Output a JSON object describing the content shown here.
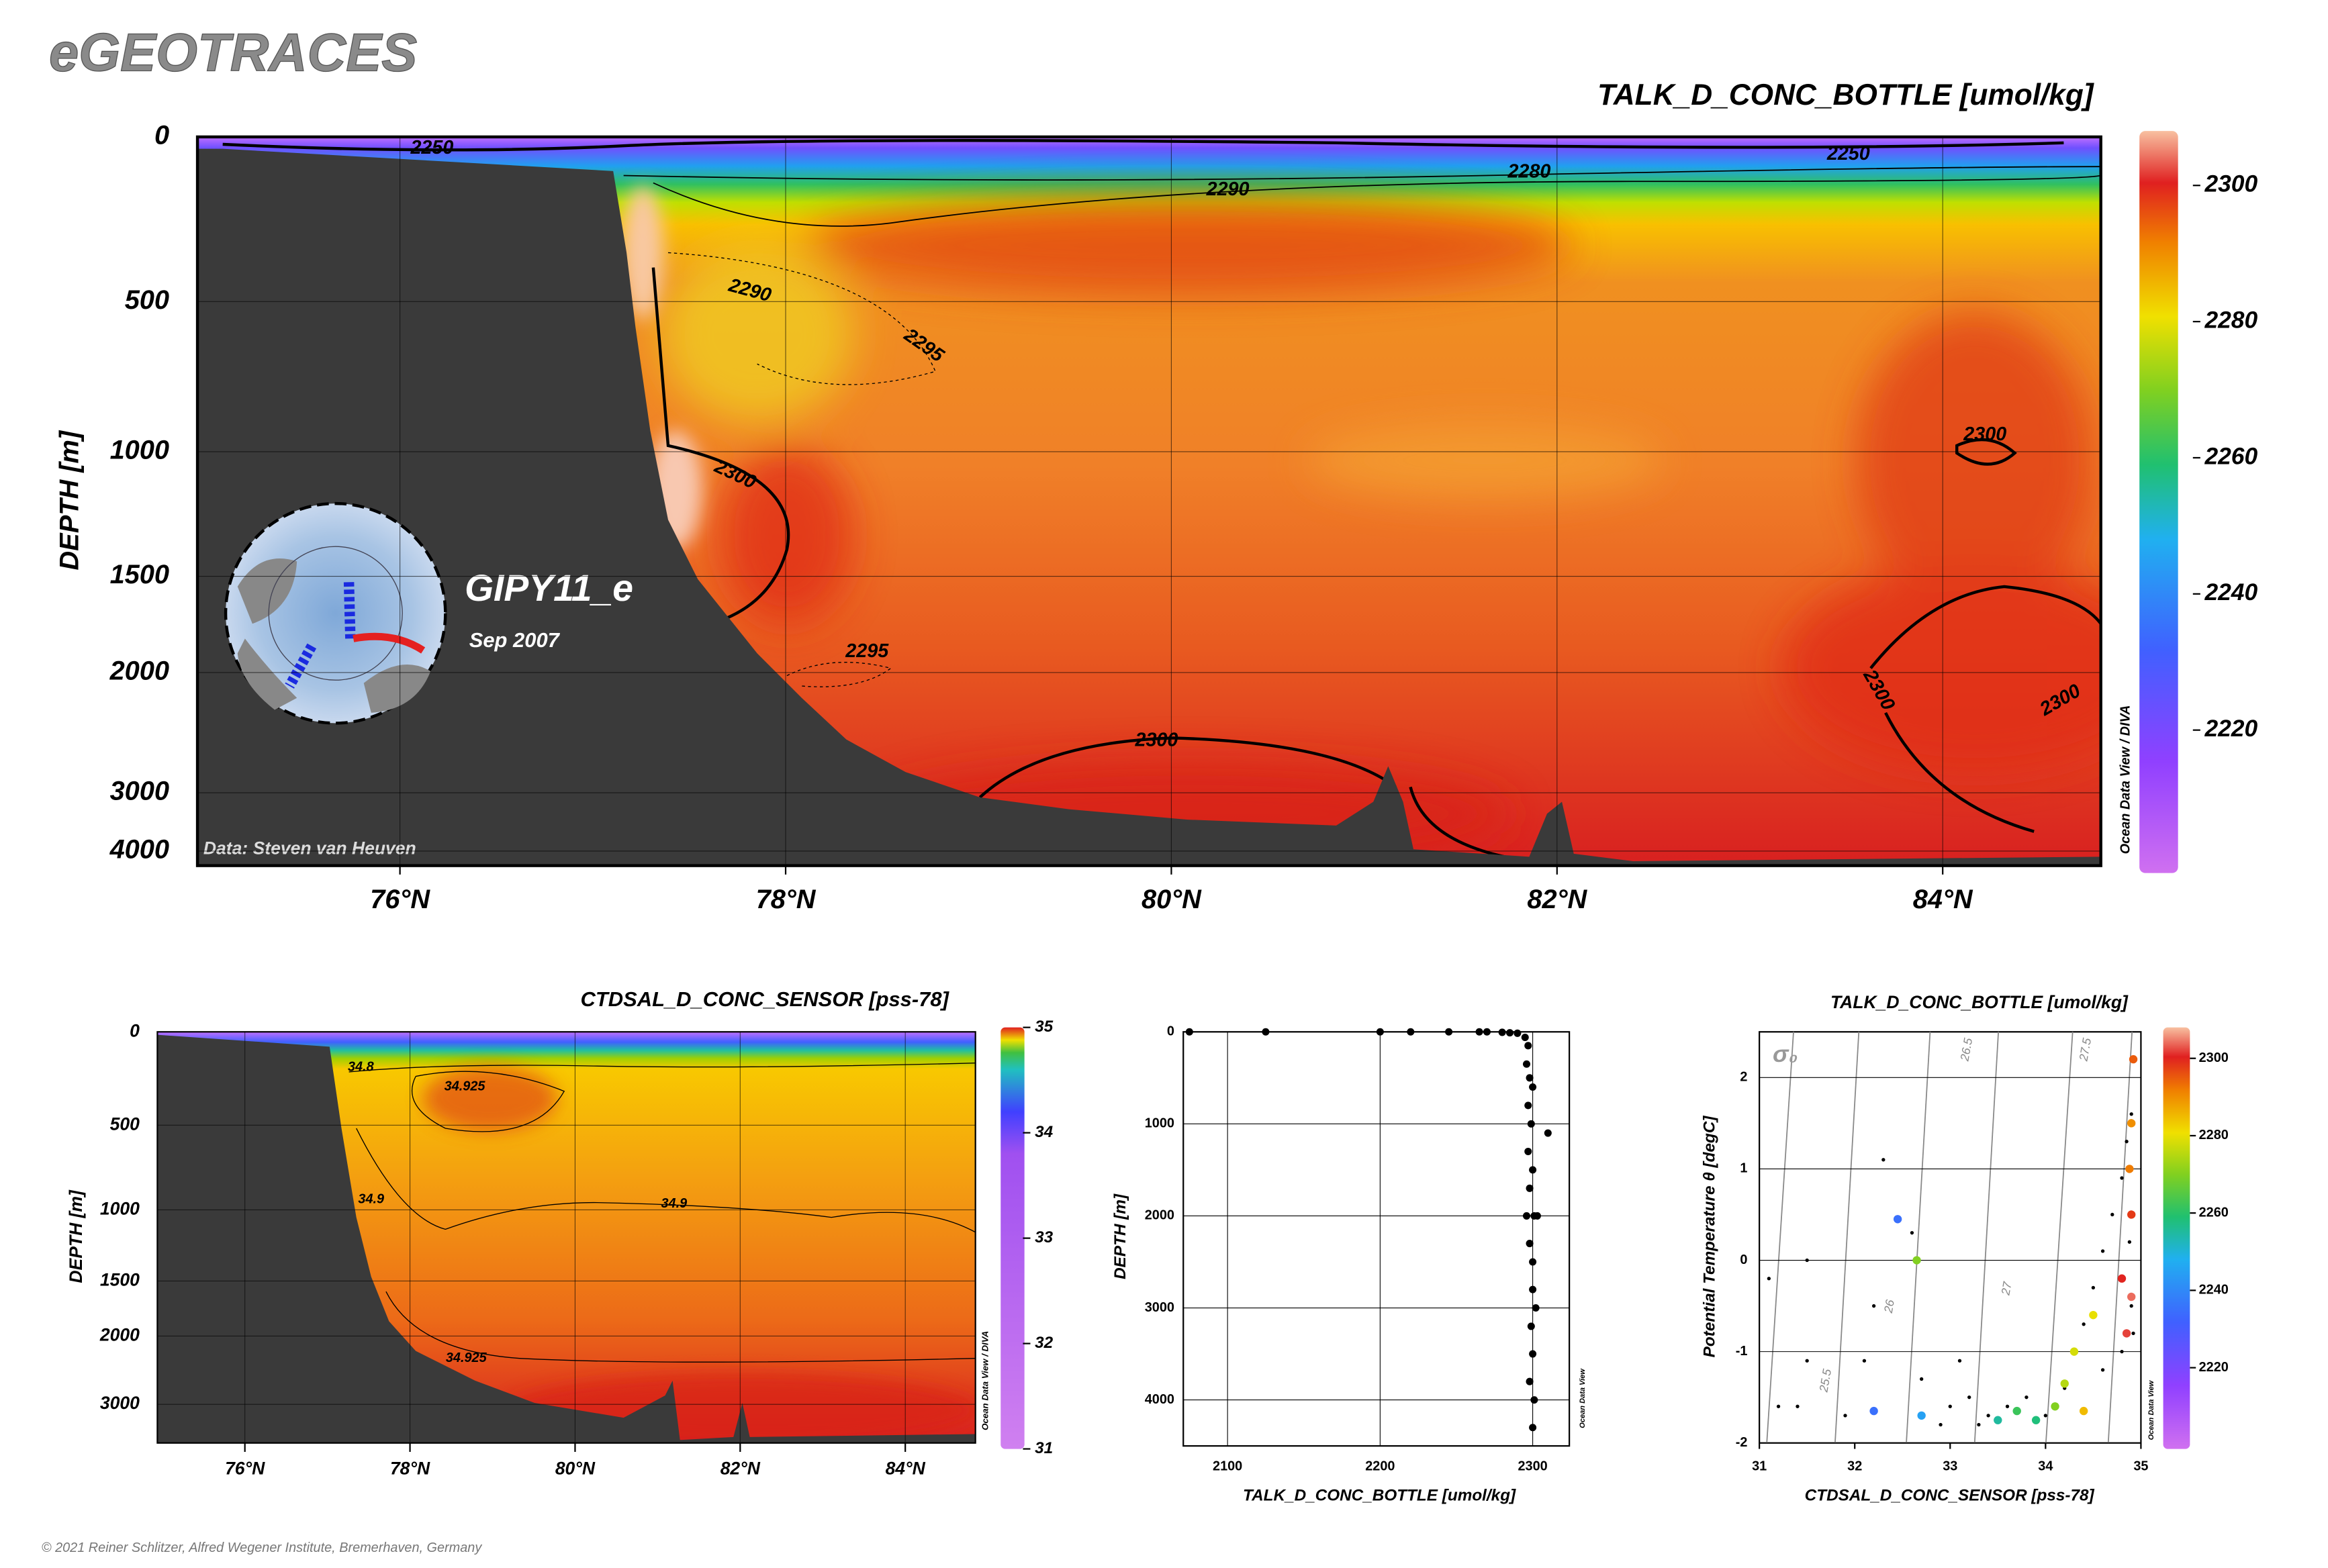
{
  "header": {
    "logo": "eGEOTRACES"
  },
  "chart_data": [
    {
      "type": "section",
      "title": "TALK_D_CONC_BOTTLE [umol/kg]",
      "ylabel": "DEPTH [m]",
      "xlim": [
        74.95,
        84.82
      ],
      "xticks": [
        {
          "value": 76,
          "label": "76°N"
        },
        {
          "value": 78,
          "label": "78°N"
        },
        {
          "value": 80,
          "label": "80°N"
        },
        {
          "value": 82,
          "label": "82°N"
        },
        {
          "value": 84,
          "label": "84°N"
        }
      ],
      "ylim": [
        0,
        4300
      ],
      "yticks": [
        0,
        500,
        1000,
        1500,
        2000,
        3000,
        4000
      ],
      "clim": [
        2199,
        2308
      ],
      "cticks": [
        2300,
        2280,
        2260,
        2240,
        2220
      ],
      "contour_labels": [
        2250,
        2250,
        2280,
        2290,
        2290,
        2295,
        2300,
        2300,
        2295,
        2300,
        2300,
        2300
      ],
      "inset": {
        "cruise": "GIPY11_e",
        "date": "Sep 2007"
      },
      "credit": "Data: Steven van Heuven",
      "watermark": "Ocean Data View / DIVA"
    },
    {
      "type": "section",
      "title": "CTDSAL_D_CONC_SENSOR [pss-78]",
      "ylabel": "DEPTH [m]",
      "xlim": [
        74.94,
        84.85
      ],
      "xticks": [
        {
          "value": 76,
          "label": "76°N"
        },
        {
          "value": 78,
          "label": "78°N"
        },
        {
          "value": 80,
          "label": "80°N"
        },
        {
          "value": 82,
          "label": "82°N"
        },
        {
          "value": 84,
          "label": "84°N"
        }
      ],
      "ylim": [
        0,
        4300
      ],
      "yticks": [
        0,
        500,
        1000,
        1500,
        2000,
        3000
      ],
      "clim": [
        31,
        35
      ],
      "cticks": [
        35,
        34,
        33,
        32,
        31
      ],
      "contour_labels": [
        34.8,
        34.925,
        34.9,
        34.9,
        34.925
      ],
      "watermark": "Ocean Data View / DIVA"
    },
    {
      "type": "scatter",
      "xlabel": "TALK_D_CONC_BOTTLE [umol/kg]",
      "ylabel": "DEPTH [m]",
      "xlim": [
        2071,
        2324
      ],
      "xticks": [
        2100,
        2200,
        2300
      ],
      "ylim": [
        4500,
        0
      ],
      "yticks": [
        0,
        1000,
        2000,
        3000,
        4000
      ],
      "x": [
        2075,
        2125,
        2200,
        2220,
        2245,
        2265,
        2270,
        2280,
        2285,
        2290,
        2295,
        2297,
        2296,
        2298,
        2300,
        2297,
        2299,
        2310,
        2297,
        2300,
        2298,
        2301,
        2296,
        2303,
        2298,
        2300,
        2300,
        2302,
        2299,
        2300,
        2298,
        2301,
        2300
      ],
      "y": [
        0,
        0,
        0,
        0,
        0,
        0,
        0,
        5,
        10,
        15,
        60,
        150,
        350,
        500,
        600,
        800,
        1000,
        1100,
        1300,
        1500,
        1700,
        2000,
        2000,
        2000,
        2300,
        2500,
        2800,
        3000,
        3200,
        3500,
        3800,
        4000,
        4300
      ],
      "color": "#000000",
      "watermark": "Ocean Data View"
    },
    {
      "type": "ts",
      "title": "TALK_D_CONC_BOTTLE [umol/kg]",
      "xlabel": "CTDSAL_D_CONC_SENSOR [pss-78]",
      "ylabel": "Potential Temperature θ [degC]",
      "xlim": [
        31,
        35
      ],
      "xticks": [
        31,
        32,
        33,
        34,
        35
      ],
      "ylim": [
        -2,
        2.5
      ],
      "yticks": [
        -2,
        -1,
        0,
        1,
        2
      ],
      "x": [
        31.2,
        31.4,
        31.5,
        31.9,
        32.1,
        32.2,
        32.3,
        32.6,
        32.7,
        33.0,
        33.2,
        33.4,
        33.6,
        33.8,
        34.0,
        34.2,
        34.3,
        34.4,
        34.5,
        34.6,
        34.7,
        34.8,
        34.85,
        34.9,
        34.88,
        34.9,
        34.92,
        34.8,
        34.6,
        33.1,
        31.5,
        31.1,
        32.9,
        33.3
      ],
      "y": [
        -1.6,
        -1.6,
        -1.1,
        -1.7,
        -1.1,
        -0.5,
        1.1,
        0.3,
        -1.3,
        -1.6,
        -1.5,
        -1.7,
        -1.6,
        -1.5,
        -1.7,
        -1.4,
        -1.0,
        -0.7,
        -0.3,
        0.1,
        0.5,
        0.9,
        1.3,
        1.6,
        0.2,
        -0.5,
        -0.8,
        -1.0,
        -1.2,
        -1.1,
        0,
        -0.2,
        -1.8,
        -1.8
      ],
      "color": "#000000",
      "color_points": {
        "x": [
          32.45,
          32.65,
          32.2,
          32.7,
          33.5,
          33.7,
          33.9,
          34.1,
          34.2,
          34.3,
          34.4,
          34.5,
          34.8,
          34.85,
          34.9,
          34.88,
          34.9,
          34.92,
          34.9
        ],
        "y": [
          0.45,
          0.0,
          -1.65,
          -1.7,
          -1.75,
          -1.65,
          -1.75,
          -1.6,
          -1.35,
          -1.0,
          -1.65,
          -0.6,
          -0.2,
          -0.8,
          0.5,
          1.0,
          1.5,
          2.2,
          -0.4
        ],
        "values": [
          2235,
          2270,
          2235,
          2245,
          2255,
          2262,
          2258,
          2270,
          2275,
          2278,
          2285,
          2280,
          2300,
          2302,
          2298,
          2292,
          2290,
          2295,
          2304
        ]
      },
      "clim": [
        2199,
        2308
      ],
      "cticks": [
        2300,
        2280,
        2260,
        2240,
        2220
      ],
      "sigma_label": "σ₀",
      "isopycnal_labels": [
        25.5,
        26,
        26.5,
        27,
        27.5
      ],
      "watermark": "Ocean Data View"
    }
  ],
  "footer": {
    "copyright": "© 2021 Reiner Schlitzer, Alfred Wegener Institute, Bremerhaven, Germany"
  }
}
